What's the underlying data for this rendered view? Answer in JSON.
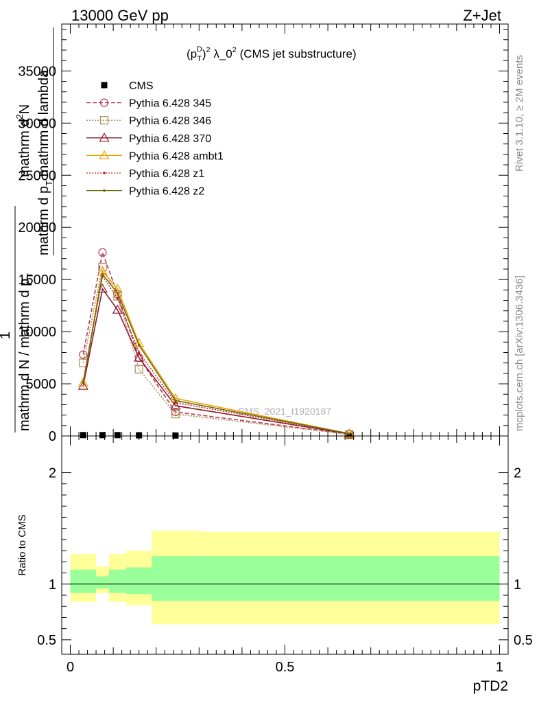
{
  "header": {
    "left": "13000 GeV pp",
    "right": "Z+Jet"
  },
  "side_labels": {
    "rivet": "Rivet 3.1.10, ≥ 2M events",
    "mcplots": "mcplots.cern.ch [arXiv:1306.3436]"
  },
  "chart_data": [
    {
      "type": "line",
      "title": "(p_T^D)^2 λ_0^2 (CMS jet substructure)",
      "title_parts": {
        "lhs": "(p",
        "sup_D": "D",
        "sub_T": "T",
        "rhs": ")",
        "sq": "2",
        "mid": " λ_0",
        "sq2": "2",
        "tail": " (CMS jet substructure)"
      },
      "watermark": "CMS_2021_I1920187",
      "ylabel_lines": [
        "mathrm d²N",
        "mathrm d p_T mathrm d lambda",
        "1",
        "mathrm d N / mathrm d p_T"
      ],
      "ylabel": {
        "line1": "mathrm d",
        "line1_sup": "2",
        "line1_end": "N",
        "line2": "mathrm d p",
        "line2_sub": "T",
        "line2_end": " mathrm d lambda",
        "one": "1",
        "den": "mathrm d N / mathrm d p",
        "den_sub": "T"
      },
      "ylim": [
        0,
        39500
      ],
      "xlim": [
        -0.02,
        1.02
      ],
      "yticks": [
        {
          "v": 0,
          "label": "0"
        },
        {
          "v": 5000,
          "label": "5000"
        },
        {
          "v": 10000,
          "label": "10000"
        },
        {
          "v": 15000,
          "label": "15000"
        },
        {
          "v": 20000,
          "label": "20000"
        },
        {
          "v": 25000,
          "label": "25000"
        },
        {
          "v": 30000,
          "label": "30000"
        },
        {
          "v": 35000,
          "label": "35000"
        }
      ],
      "legend": {
        "position": "top-left",
        "entries": [
          {
            "label": "CMS",
            "color": "#000000",
            "marker": "square-filled",
            "dash": "none"
          },
          {
            "label": "Pythia 6.428 345",
            "color": "#b5364f",
            "marker": "circle",
            "dash": "6,3"
          },
          {
            "label": "Pythia 6.428 346",
            "color": "#a88c50",
            "marker": "square",
            "dash": "2,2"
          },
          {
            "label": "Pythia 6.428 370",
            "color": "#8b1a2b",
            "marker": "triangle",
            "dash": "none"
          },
          {
            "label": "Pythia 6.428 ambt1",
            "color": "#f0a000",
            "marker": "triangle",
            "dash": "none"
          },
          {
            "label": "Pythia 6.428 z1",
            "color": "#c0201e",
            "marker": "dot",
            "dash": "2,2"
          },
          {
            "label": "Pythia 6.428 z2",
            "color": "#6b6b10",
            "marker": "dot",
            "dash": "none"
          }
        ]
      },
      "x": [
        0.03,
        0.075,
        0.11,
        0.16,
        0.245,
        0.65
      ],
      "series": [
        {
          "name": "CMS",
          "values": [
            80,
            80,
            80,
            60,
            40,
            10
          ]
        },
        {
          "name": "Pythia 6.428 345",
          "values": [
            7800,
            17600,
            13600,
            7500,
            2300,
            180
          ]
        },
        {
          "name": "Pythia 6.428 346",
          "values": [
            7000,
            16200,
            13400,
            6400,
            2100,
            150
          ]
        },
        {
          "name": "Pythia 6.428 370",
          "values": [
            4800,
            14100,
            12100,
            7500,
            2900,
            200
          ]
        },
        {
          "name": "Pythia 6.428 ambt1",
          "values": [
            5100,
            15800,
            14100,
            8900,
            3600,
            230
          ]
        },
        {
          "name": "Pythia 6.428 z1",
          "values": [
            5200,
            15300,
            13200,
            8000,
            3200,
            210
          ]
        },
        {
          "name": "Pythia 6.428 z2",
          "values": [
            5100,
            15500,
            13700,
            8700,
            3400,
            220
          ]
        }
      ]
    },
    {
      "type": "area",
      "ylabel": "Ratio to CMS",
      "xlabel": "pTD2",
      "ylim": [
        0.37,
        2.33
      ],
      "xlim": [
        -0.02,
        1.02
      ],
      "yticks": [
        {
          "v": 0.5,
          "label": "0.5"
        },
        {
          "v": 1,
          "label": "1"
        },
        {
          "v": 2,
          "label": "2"
        }
      ],
      "xticks": [
        {
          "v": 0,
          "label": "0"
        },
        {
          "v": 0.5,
          "label": "0.5"
        },
        {
          "v": 1,
          "label": "1"
        }
      ],
      "reference": 1,
      "band_colors": {
        "outer": "#ffff99",
        "inner": "#99ff99"
      },
      "bins": [
        {
          "lo": 0.0,
          "hi": 0.06,
          "outer": [
            0.84,
            1.27
          ],
          "inner": [
            0.92,
            1.13
          ]
        },
        {
          "lo": 0.06,
          "hi": 0.09,
          "outer": [
            0.92,
            1.16
          ],
          "inner": [
            0.96,
            1.07
          ]
        },
        {
          "lo": 0.09,
          "hi": 0.13,
          "outer": [
            0.84,
            1.27
          ],
          "inner": [
            0.92,
            1.13
          ]
        },
        {
          "lo": 0.13,
          "hi": 0.19,
          "outer": [
            0.81,
            1.3
          ],
          "inner": [
            0.91,
            1.15
          ]
        },
        {
          "lo": 0.19,
          "hi": 0.3,
          "outer": [
            0.64,
            1.48
          ],
          "inner": [
            0.85,
            1.25
          ]
        },
        {
          "lo": 0.3,
          "hi": 1.0,
          "outer": [
            0.64,
            1.47
          ],
          "inner": [
            0.85,
            1.25
          ]
        }
      ]
    }
  ]
}
